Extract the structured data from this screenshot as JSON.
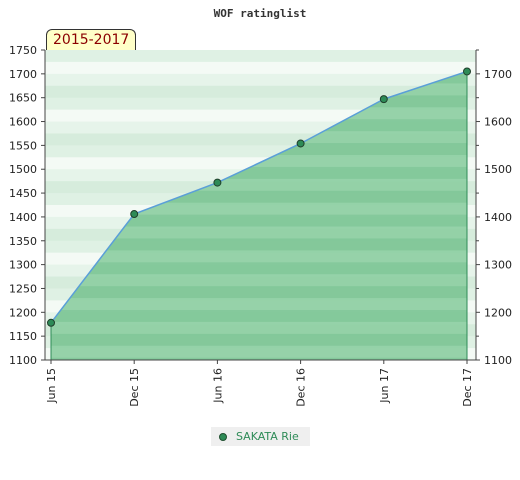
{
  "chart_data": {
    "type": "area",
    "title": "WOF ratinglist",
    "badge": "2015-2017",
    "categories": [
      "Jun 15",
      "Dec 15",
      "Jun 16",
      "Dec 16",
      "Jun 17",
      "Dec 17"
    ],
    "series": [
      {
        "name": "SAKATA Rie",
        "values": [
          1178,
          1406,
          1472,
          1554,
          1647,
          1705
        ]
      }
    ],
    "ylim": [
      1100,
      1750
    ],
    "left_ticks": [
      1100,
      1150,
      1200,
      1250,
      1300,
      1350,
      1400,
      1450,
      1500,
      1550,
      1600,
      1650,
      1700,
      1750
    ],
    "right_ticks": [
      1100,
      1200,
      1300,
      1400,
      1500,
      1600,
      1700
    ],
    "grid": true,
    "legend_position": "bottom",
    "colors": {
      "line": "#5a9fd8",
      "fill": "#5cb87a",
      "marker": "#2e8b57",
      "badge_text": "#8b0000"
    }
  }
}
